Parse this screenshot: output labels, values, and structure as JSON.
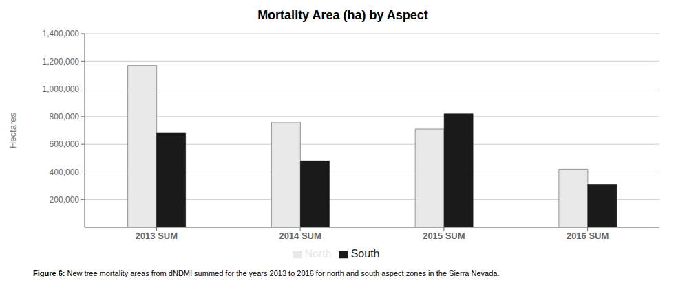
{
  "chart_data": {
    "type": "bar",
    "title": "Mortality Area (ha) by Aspect",
    "categories": [
      "2013 SUM",
      "2014 SUM",
      "2015 SUM",
      "2016 SUM"
    ],
    "series": [
      {
        "name": "North",
        "color": "#e8e8e8",
        "values": [
          1170000,
          760000,
          710000,
          420000
        ]
      },
      {
        "name": "South",
        "color": "#1a1a1a",
        "values": [
          680000,
          480000,
          820000,
          310000
        ]
      }
    ],
    "y_label": "Hectares",
    "ylim": [
      0,
      1400000
    ],
    "yticks": [
      {
        "value": 200000,
        "label": "200,000"
      },
      {
        "value": 400000,
        "label": "400,000"
      },
      {
        "value": 600000,
        "label": "600,000"
      },
      {
        "value": 800000,
        "label": "800,000"
      },
      {
        "value": 1000000,
        "label": "1,000,000"
      },
      {
        "value": 1200000,
        "label": "1,200,000"
      },
      {
        "value": 1400000,
        "label": "1,400,000"
      }
    ],
    "grid": true,
    "legend": "bottom",
    "annotations": [
      "Figure 6:",
      "New tree mortality areas from dNDMI summed for the years 2013 to 2016 for north and south aspect zones in the Sierra Nevada."
    ]
  }
}
